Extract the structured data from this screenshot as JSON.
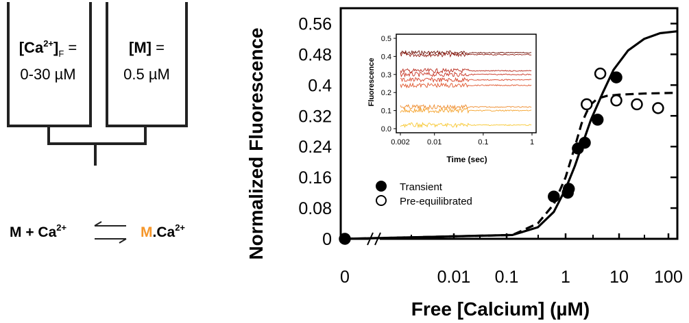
{
  "scheme": {
    "left_syringe": {
      "line1_main": "[Ca",
      "line1_sup": "2+",
      "line1_after": "]",
      "line1_sub": "F",
      "line1_end": " =",
      "line2": "0-30 µM"
    },
    "right_syringe": {
      "line1_main": "[M]",
      "line1_end": " =",
      "line2": "0.5 µM"
    }
  },
  "reaction": {
    "left": "M + Ca",
    "left_sup": "2+",
    "product_m": "M",
    "product_rest": ".Ca",
    "product_sup": "2+",
    "product_m_color": "#f5962a"
  },
  "chart_data": {
    "type": "scatter",
    "title": "",
    "xlabel": "Free [Calcium] (µM)",
    "ylabel": "Normalized Fluorescence",
    "xscale": "log (broken axis at zero)",
    "x_tick_labels": [
      "0",
      "0.01",
      "0.1",
      "1",
      "10",
      "100"
    ],
    "y_tick_labels": [
      "0",
      "0.08",
      "0.16",
      "0.24",
      "0.32",
      "0.4",
      "0.48",
      "0.56"
    ],
    "ylim": [
      0,
      0.6
    ],
    "legend_position": "lower-left inside plot",
    "series": [
      {
        "name": "Transient",
        "marker": "filled-circle",
        "points": [
          [
            0,
            0
          ],
          [
            0.6,
            0.11
          ],
          [
            1.1,
            0.12
          ],
          [
            1.15,
            0.13
          ],
          [
            1.7,
            0.235
          ],
          [
            2.3,
            0.25
          ],
          [
            4.0,
            0.31
          ],
          [
            9.0,
            0.42
          ]
        ]
      },
      {
        "name": "Pre-equilibrated",
        "marker": "open-circle",
        "points": [
          [
            2.5,
            0.35
          ],
          [
            4.5,
            0.43
          ],
          [
            9.0,
            0.36
          ],
          [
            22,
            0.35
          ],
          [
            55,
            0.34
          ]
        ]
      }
    ],
    "fits": [
      {
        "style": "solid",
        "x": [
          0.001,
          0.1,
          0.3,
          0.6,
          1,
          1.5,
          2,
          3,
          5,
          8,
          15,
          30,
          60,
          150
        ],
        "y": [
          0,
          0.01,
          0.03,
          0.07,
          0.13,
          0.19,
          0.24,
          0.31,
          0.38,
          0.44,
          0.49,
          0.52,
          0.535,
          0.54
        ]
      },
      {
        "style": "dashed",
        "x": [
          0.001,
          0.1,
          0.3,
          0.6,
          1,
          1.5,
          2,
          2.5,
          3,
          4,
          6,
          10,
          30,
          150
        ],
        "y": [
          0,
          0.01,
          0.04,
          0.09,
          0.16,
          0.24,
          0.3,
          0.33,
          0.35,
          0.365,
          0.372,
          0.375,
          0.378,
          0.38
        ]
      }
    ],
    "inset": {
      "type": "line",
      "xlabel": "Time (sec)",
      "ylabel": "Fluorescence",
      "x_tick_labels": [
        "0.002",
        "0.01",
        "0.1",
        "1"
      ],
      "y_tick_labels": [
        "0.0",
        "0.1",
        "0.2",
        "0.3",
        "0.4",
        "0.5"
      ],
      "xlim": [
        0.002,
        1
      ],
      "ylim": [
        0,
        0.5
      ],
      "traces": [
        {
          "level": 0.42,
          "color": "#6b1208"
        },
        {
          "level": 0.41,
          "color": "#8e1a10"
        },
        {
          "level": 0.32,
          "color": "#b82a1c"
        },
        {
          "level": 0.3,
          "color": "#c93424"
        },
        {
          "level": 0.27,
          "color": "#d8442a"
        },
        {
          "level": 0.24,
          "color": "#e0552c"
        },
        {
          "level": 0.12,
          "color": "#ee8a2a"
        },
        {
          "level": 0.1,
          "color": "#f5a22a"
        },
        {
          "level": 0.02,
          "color": "#f7c62c"
        }
      ]
    }
  }
}
